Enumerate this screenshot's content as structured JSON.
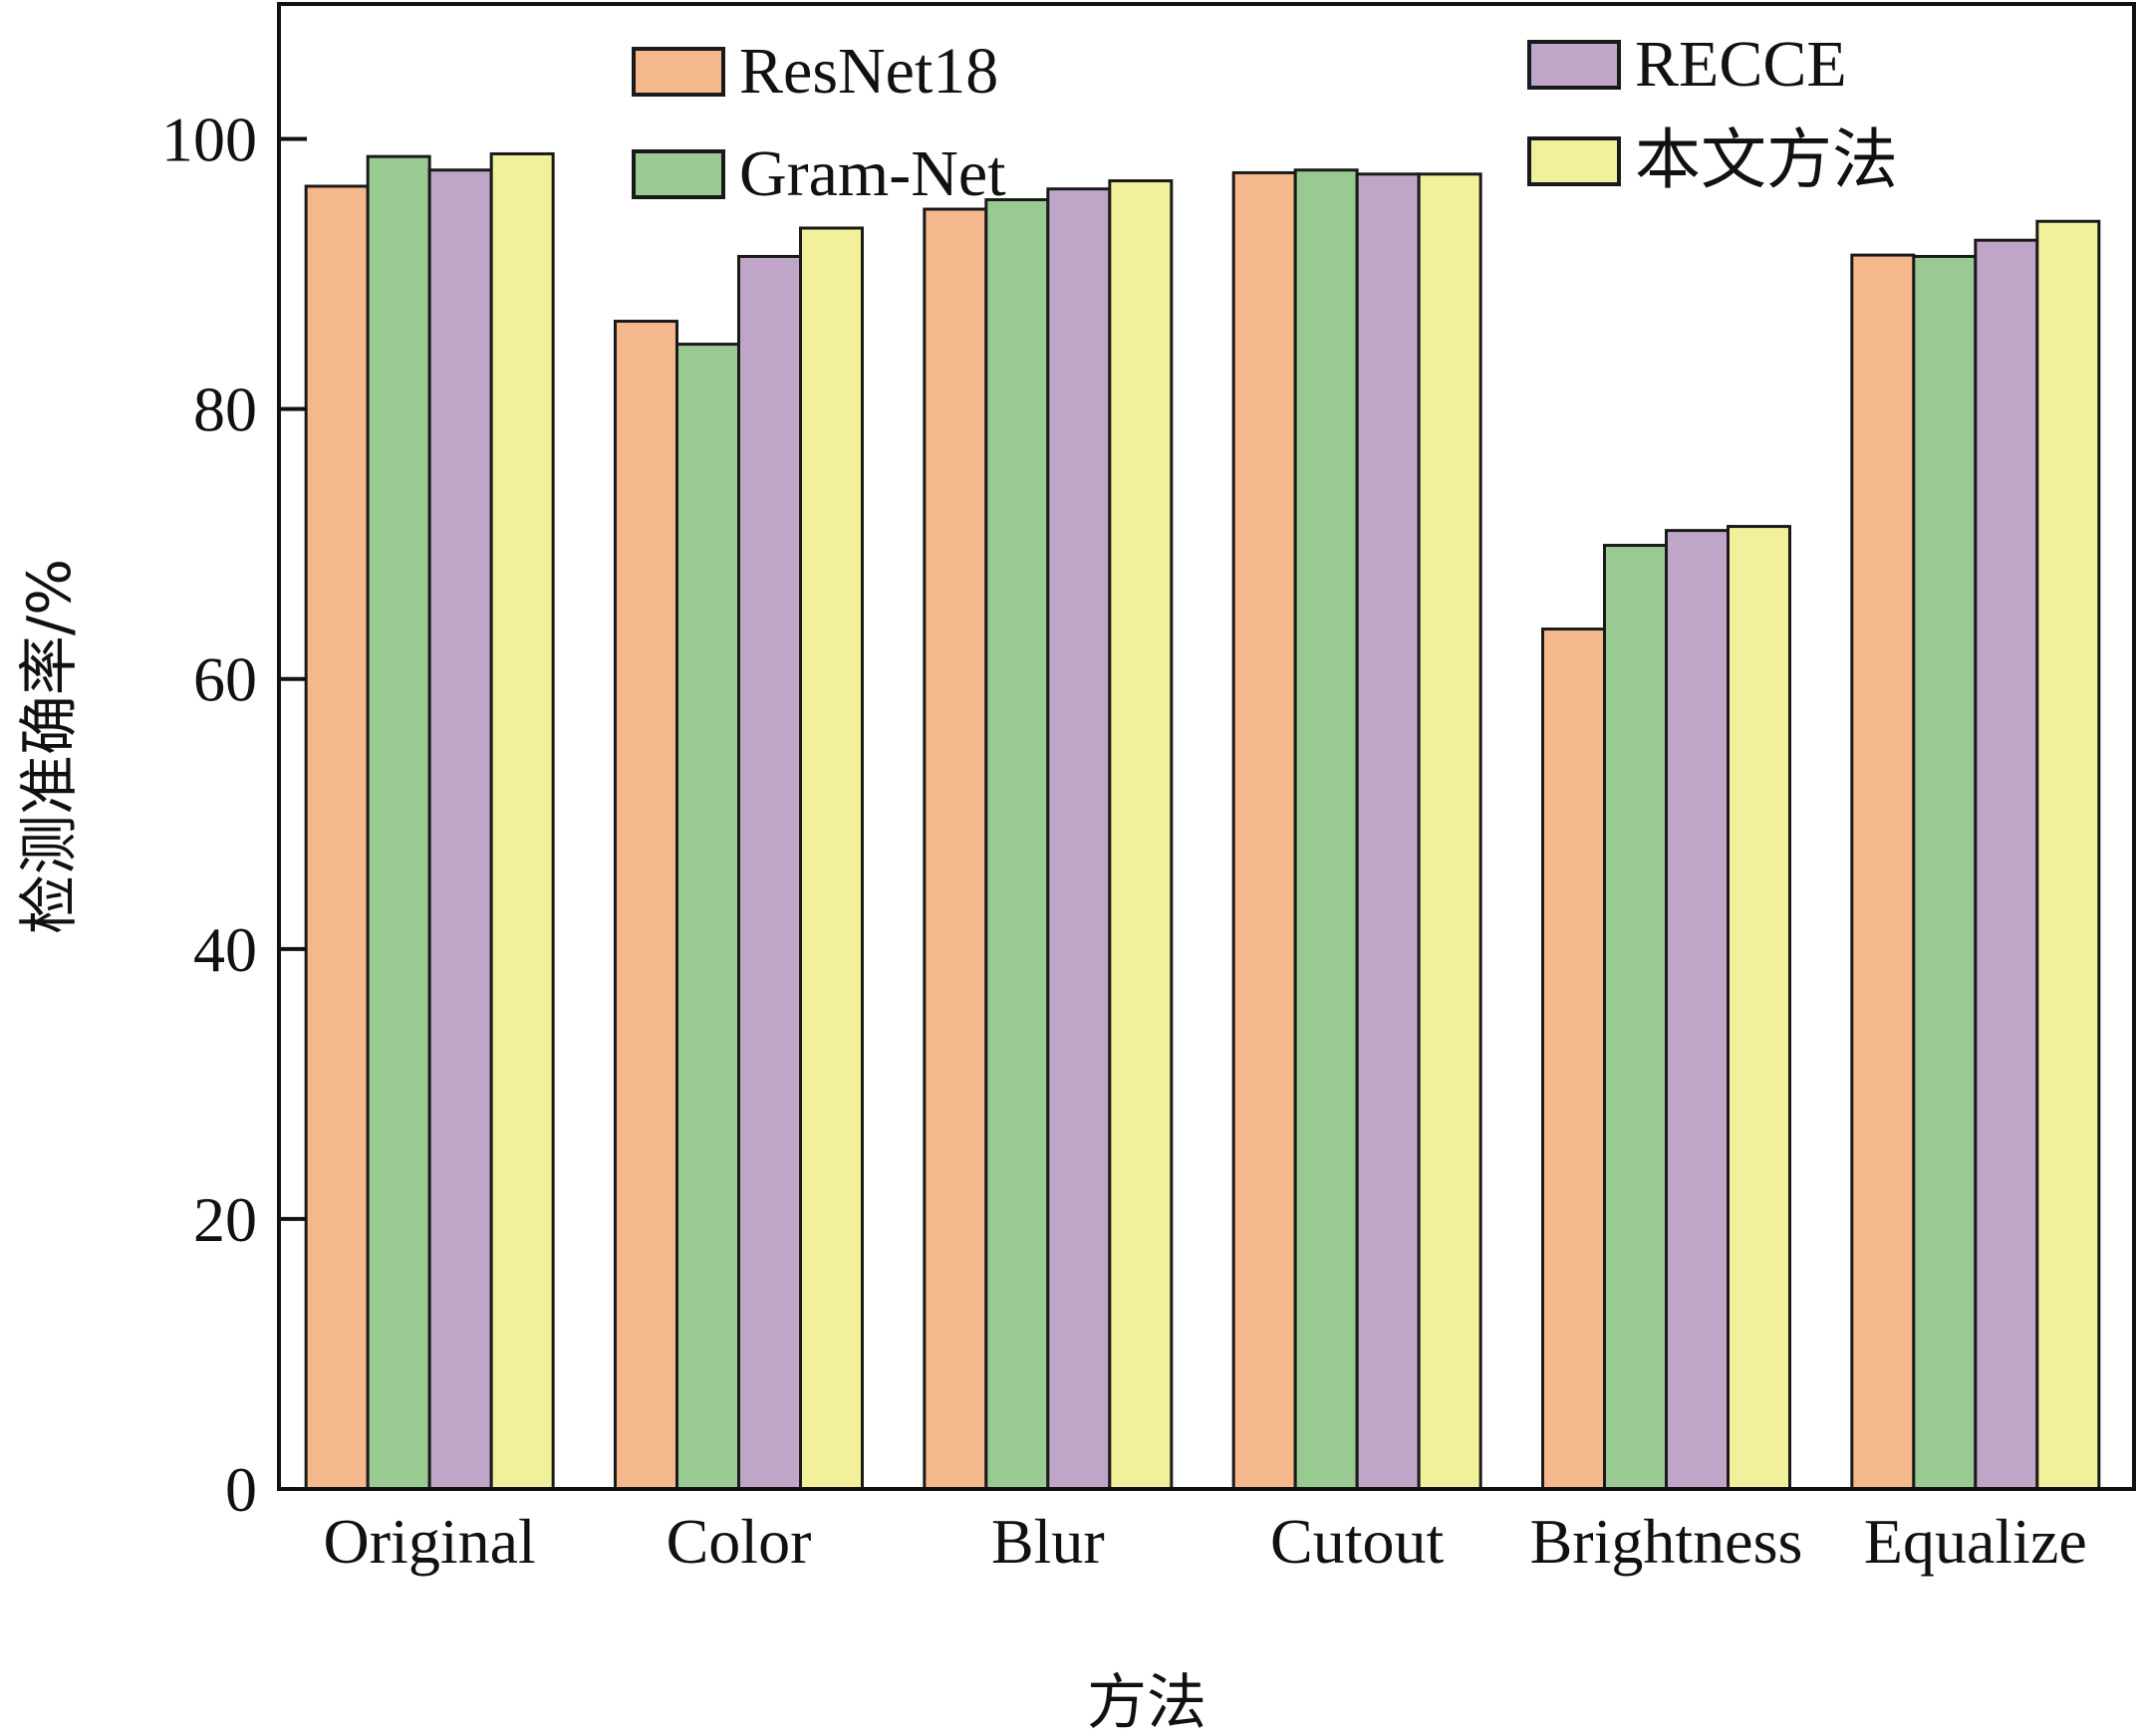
{
  "chart_data": {
    "type": "bar",
    "title": "",
    "xlabel": "方法",
    "ylabel": "检测准确率/%",
    "categories": [
      "Original",
      "Color",
      "Blur",
      "Cutout",
      "Brightness",
      "Equalize"
    ],
    "series": [
      {
        "name": "ResNet18",
        "color": "#F5B88D",
        "values": [
          96.5,
          86.5,
          94.8,
          97.5,
          63.7,
          91.4
        ]
      },
      {
        "name": "Gram-Net",
        "color": "#99CA92",
        "values": [
          98.7,
          84.8,
          95.5,
          97.7,
          69.9,
          91.3
        ]
      },
      {
        "name": "RECCE",
        "color": "#BFA6C9",
        "values": [
          97.7,
          91.3,
          96.3,
          97.4,
          71.0,
          92.5
        ]
      },
      {
        "name": "本文方法",
        "color": "#F2F09A",
        "values": [
          98.9,
          93.4,
          96.9,
          97.4,
          71.3,
          93.9
        ]
      }
    ],
    "ylim": [
      0,
      110
    ],
    "yticks": [
      0,
      20,
      40,
      60,
      80,
      100
    ],
    "grid": false,
    "legend": "top, two columns"
  }
}
